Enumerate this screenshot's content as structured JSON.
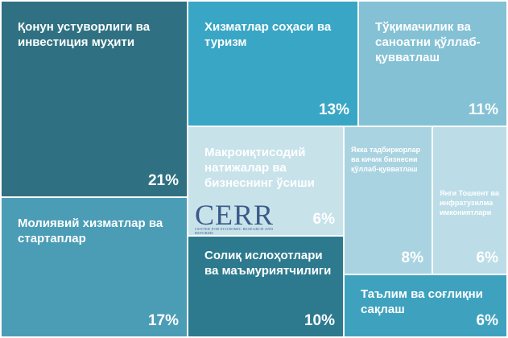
{
  "logo": {
    "text": "CERR",
    "subtitle": "CENTER FOR ECONOMIC RESEARCH AND REFORMS"
  },
  "chart_data": {
    "type": "treemap",
    "title": "",
    "value_unit": "%",
    "items": [
      {
        "label": "Қонун устуворлиги ва инвестиция муҳити",
        "value": 21,
        "display": "21%",
        "color": "#2f7182"
      },
      {
        "label": "Хизматлар соҳаси ва туризм",
        "value": 13,
        "display": "13%",
        "color": "#3aa6c5"
      },
      {
        "label": "Тўқимачилик ва саноатни қўллаб-қувватлаш",
        "value": 11,
        "display": "11%",
        "color": "#84c1d4"
      },
      {
        "label": "Макроиқтисодий натижалар ва бизнеснинг ўсиши",
        "value": 6,
        "display": "6%",
        "color": "#c8e2ea"
      },
      {
        "label": "Якка тадбиркорлар ва кичик бизнесни қўллаб-қувватлаш",
        "value": 8,
        "display": "8%",
        "color": "#a9d3e0"
      },
      {
        "label": "Янги Тошкент ва инфратузилма имкониятлари",
        "value": 6,
        "display": "6%",
        "color": "#bcdde7"
      },
      {
        "label": "Молиявий хизматлар ва стартаплар",
        "value": 17,
        "display": "17%",
        "color": "#4b9db6"
      },
      {
        "label": "Солиқ ислоҳотлари ва маъмуриятчилиги",
        "value": 10,
        "display": "10%",
        "color": "#2d7a8f"
      },
      {
        "label": "Таълим ва соғлиқни сақлаш",
        "value": 6,
        "display": "6%",
        "color": "#3ea2bf"
      }
    ]
  }
}
